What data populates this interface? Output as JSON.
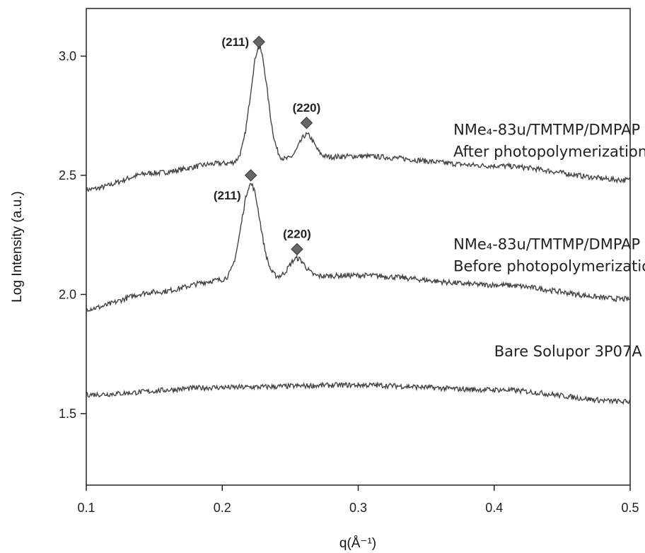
{
  "chart_data": {
    "type": "line",
    "xlabel": "q(Å⁻¹)",
    "ylabel": "Log Intensity (a.u.)",
    "xlim": [
      0.1,
      0.5
    ],
    "ylim": [
      1.2,
      3.2
    ],
    "x_ticks": [
      0.1,
      0.2,
      0.3,
      0.4,
      0.5
    ],
    "x_tick_labels": [
      "0.1",
      "0.2",
      "0.3",
      "0.4",
      "0.5"
    ],
    "y_ticks": [
      1.5,
      2.0,
      2.5,
      3.0
    ],
    "y_tick_labels": [
      "1.5",
      "2.0",
      "2.5",
      "3.0"
    ],
    "grid": false,
    "line_color": "#444444",
    "marker_color": "#666666",
    "series": [
      {
        "label_lines": [
          "NMe₄-83u/TMTMP/DMPAP",
          "After photopolymerization"
        ],
        "label_pos": [
          0.37,
          2.67
        ],
        "baseline": [
          [
            0.1,
            2.44
          ],
          [
            0.15,
            2.51
          ],
          [
            0.2,
            2.55
          ],
          [
            0.3,
            2.58
          ],
          [
            0.4,
            2.54
          ],
          [
            0.5,
            2.48
          ]
        ],
        "peaks": [
          {
            "x": 0.227,
            "height": 0.48,
            "width": 0.0062,
            "label": "(211)",
            "marker_y": 3.06
          },
          {
            "x": 0.262,
            "height": 0.1,
            "width": 0.0055,
            "label": "(220)",
            "marker_y": 2.72
          }
        ]
      },
      {
        "label_lines": [
          "NMe₄-83u/TMTMP/DMPAP",
          "Before photopolymerization"
        ],
        "label_pos": [
          0.37,
          2.19
        ],
        "baseline": [
          [
            0.1,
            1.94
          ],
          [
            0.15,
            2.01
          ],
          [
            0.2,
            2.06
          ],
          [
            0.3,
            2.08
          ],
          [
            0.4,
            2.04
          ],
          [
            0.5,
            1.98
          ]
        ],
        "peaks": [
          {
            "x": 0.221,
            "height": 0.4,
            "width": 0.0068,
            "label": "(211)",
            "marker_y": 2.5
          },
          {
            "x": 0.255,
            "height": 0.08,
            "width": 0.0058,
            "label": "(220)",
            "marker_y": 2.19
          }
        ]
      },
      {
        "label_lines": [
          "Bare Solupor 3P07A"
        ],
        "label_pos": [
          0.4,
          1.74
        ],
        "baseline": [
          [
            0.1,
            1.58
          ],
          [
            0.2,
            1.61
          ],
          [
            0.3,
            1.62
          ],
          [
            0.4,
            1.6
          ],
          [
            0.5,
            1.55
          ]
        ],
        "peaks": []
      }
    ]
  }
}
